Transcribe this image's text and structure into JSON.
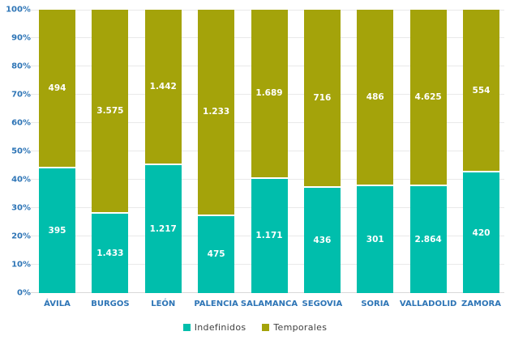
{
  "chart_data": {
    "type": "bar",
    "variant": "100%-stacked-column",
    "title": "",
    "xlabel": "",
    "ylabel": "",
    "ylim": [
      0,
      100
    ],
    "grid": true,
    "legend_position": "bottom",
    "categories": [
      "ÁVILA",
      "BURGOS",
      "LEÓN",
      "PALENCIA",
      "SALAMANCA",
      "SEGOVIA",
      "SORIA",
      "VALLADOLID",
      "ZAMORA"
    ],
    "yticks": [
      "0%",
      "10%",
      "20%",
      "30%",
      "40%",
      "50%",
      "60%",
      "70%",
      "80%",
      "90%",
      "100%"
    ],
    "series": [
      {
        "name": "Indefinidos",
        "color": "#00BEAC",
        "values": [
          395,
          1433,
          1217,
          475,
          1171,
          436,
          301,
          2864,
          420
        ],
        "labels": [
          "395",
          "1.433",
          "1.217",
          "475",
          "1.171",
          "436",
          "301",
          "2.864",
          "420"
        ]
      },
      {
        "name": "Temporales",
        "color": "#A4A30A",
        "values": [
          494,
          3575,
          1442,
          1233,
          1689,
          716,
          486,
          4625,
          554
        ],
        "labels": [
          "494",
          "3.575",
          "1.442",
          "1.233",
          "1.689",
          "716",
          "486",
          "4.625",
          "554"
        ]
      }
    ],
    "colors": {
      "axis_label": "#2E75B6",
      "category_label": "#2E75B6",
      "data_label": "#FFFFFF",
      "legend_text": "#3F3F3F",
      "gridline": "#E9E9E9",
      "baseline": "#D9D9D9",
      "background": "#FFFFFF"
    }
  }
}
